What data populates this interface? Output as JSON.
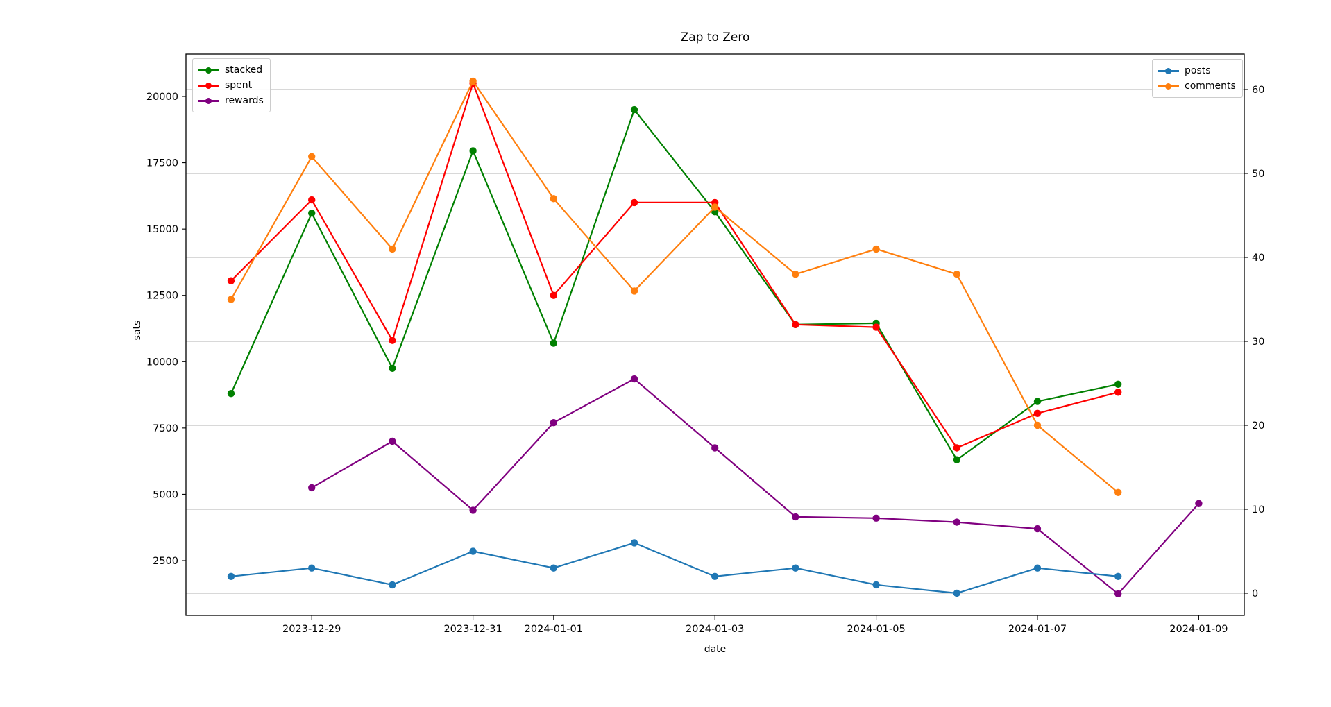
{
  "chart_data": {
    "type": "line",
    "title": "Zap to Zero",
    "xlabel": "date",
    "ylabel": "sats",
    "x_dates": [
      "2023-12-28",
      "2023-12-29",
      "2023-12-30",
      "2023-12-31",
      "2024-01-01",
      "2024-01-02",
      "2024-01-03",
      "2024-01-04",
      "2024-01-05",
      "2024-01-06",
      "2024-01-07",
      "2024-01-08",
      "2024-01-09"
    ],
    "x_tick_labels": [
      "2023-12-29",
      "2023-12-31",
      "2024-01-01",
      "2024-01-03",
      "2024-01-05",
      "2024-01-07",
      "2024-01-09"
    ],
    "x_tick_day_index": [
      1,
      3,
      4,
      6,
      8,
      10,
      12
    ],
    "left_axis": {
      "label": "sats",
      "ticks": [
        2500,
        5000,
        7500,
        10000,
        12500,
        15000,
        17500,
        20000
      ]
    },
    "right_axis": {
      "ticks": [
        0,
        10,
        20,
        30,
        40,
        50,
        60
      ]
    },
    "grid": {
      "horizontal_on_right_ticks": true,
      "color": "#b0b0b0"
    },
    "series": [
      {
        "name": "stacked",
        "axis": "left",
        "color": "#008000",
        "start_day": 0,
        "values": [
          8800,
          15600,
          9750,
          17950,
          10700,
          19500,
          15650,
          11400,
          11450,
          6300,
          8500,
          9150
        ]
      },
      {
        "name": "spent",
        "axis": "left",
        "color": "#ff0000",
        "start_day": 0,
        "values": [
          13050,
          16100,
          10800,
          20500,
          12500,
          16000,
          16000,
          11400,
          11300,
          6750,
          8050,
          8850
        ]
      },
      {
        "name": "rewards",
        "axis": "left",
        "color": "#800080",
        "start_day": 1,
        "values": [
          5250,
          7000,
          4400,
          7700,
          9350,
          6750,
          4150,
          4100,
          3950,
          3700,
          1250,
          4650
        ]
      },
      {
        "name": "posts",
        "axis": "right",
        "color": "#1f77b4",
        "start_day": 0,
        "values": [
          2,
          3,
          1,
          5,
          3,
          6,
          2,
          3,
          1,
          0,
          3,
          2
        ]
      },
      {
        "name": "comments",
        "axis": "right",
        "color": "#ff7f0e",
        "start_day": 0,
        "values": [
          35,
          52,
          41,
          61,
          47,
          36,
          46,
          38,
          41,
          38,
          20,
          12
        ]
      }
    ],
    "legend_left": [
      "stacked",
      "spent",
      "rewards"
    ],
    "legend_right": [
      "posts",
      "comments"
    ]
  }
}
